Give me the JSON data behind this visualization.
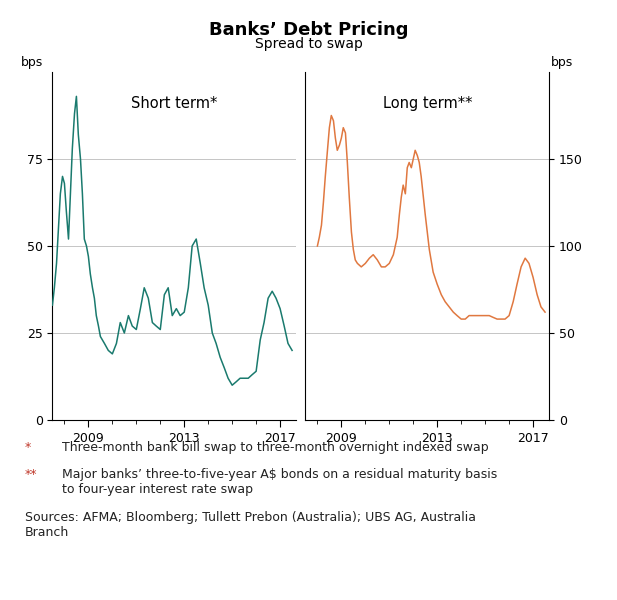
{
  "title": "Banks’ Debt Pricing",
  "subtitle": "Spread to swap",
  "left_label": "Short term*",
  "right_label": "Long term**",
  "bps_label": "bps",
  "left_ylim": [
    0,
    100
  ],
  "left_yticks": [
    0,
    25,
    50,
    75
  ],
  "right_ylim": [
    0,
    200
  ],
  "right_yticks": [
    0,
    50,
    100,
    150
  ],
  "short_color": "#1a7a6e",
  "long_color": "#e07840",
  "footnote_color": "#c0392b",
  "left_xlim": [
    2007.5,
    2017.67
  ],
  "right_xlim": [
    2007.5,
    2017.67
  ],
  "xticks": [
    2009,
    2013,
    2017
  ],
  "short_term_dates": [
    2007.5,
    2007.58,
    2007.67,
    2007.75,
    2007.83,
    2007.92,
    2008.0,
    2008.08,
    2008.17,
    2008.25,
    2008.33,
    2008.42,
    2008.5,
    2008.58,
    2008.67,
    2008.75,
    2008.83,
    2008.92,
    2009.0,
    2009.08,
    2009.17,
    2009.25,
    2009.33,
    2009.42,
    2009.5,
    2009.67,
    2009.83,
    2010.0,
    2010.17,
    2010.33,
    2010.5,
    2010.67,
    2010.83,
    2011.0,
    2011.17,
    2011.33,
    2011.5,
    2011.67,
    2011.83,
    2012.0,
    2012.17,
    2012.33,
    2012.5,
    2012.67,
    2012.83,
    2013.0,
    2013.17,
    2013.33,
    2013.5,
    2013.67,
    2013.83,
    2014.0,
    2014.17,
    2014.33,
    2014.5,
    2014.67,
    2014.83,
    2015.0,
    2015.17,
    2015.33,
    2015.5,
    2015.67,
    2015.83,
    2016.0,
    2016.17,
    2016.33,
    2016.5,
    2016.67,
    2016.83,
    2017.0,
    2017.17,
    2017.33,
    2017.5
  ],
  "short_term_values": [
    33,
    38,
    45,
    55,
    65,
    70,
    68,
    60,
    52,
    65,
    78,
    88,
    93,
    82,
    75,
    65,
    52,
    50,
    47,
    42,
    38,
    35,
    30,
    27,
    24,
    22,
    20,
    19,
    22,
    28,
    25,
    30,
    27,
    26,
    32,
    38,
    35,
    28,
    27,
    26,
    36,
    38,
    30,
    32,
    30,
    31,
    38,
    50,
    52,
    45,
    38,
    33,
    25,
    22,
    18,
    15,
    12,
    10,
    11,
    12,
    12,
    12,
    13,
    14,
    23,
    28,
    35,
    37,
    35,
    32,
    27,
    22,
    20
  ],
  "long_term_dates": [
    2008.0,
    2008.08,
    2008.17,
    2008.25,
    2008.33,
    2008.42,
    2008.5,
    2008.58,
    2008.67,
    2008.75,
    2008.83,
    2008.92,
    2009.0,
    2009.08,
    2009.17,
    2009.25,
    2009.33,
    2009.42,
    2009.5,
    2009.58,
    2009.67,
    2009.83,
    2010.0,
    2010.17,
    2010.33,
    2010.5,
    2010.67,
    2010.83,
    2011.0,
    2011.17,
    2011.33,
    2011.42,
    2011.5,
    2011.58,
    2011.67,
    2011.75,
    2011.83,
    2011.92,
    2012.0,
    2012.08,
    2012.17,
    2012.25,
    2012.33,
    2012.5,
    2012.67,
    2012.83,
    2013.0,
    2013.17,
    2013.33,
    2013.5,
    2013.67,
    2013.83,
    2014.0,
    2014.17,
    2014.33,
    2014.5,
    2014.67,
    2014.83,
    2015.0,
    2015.17,
    2015.33,
    2015.5,
    2015.67,
    2015.83,
    2016.0,
    2016.17,
    2016.33,
    2016.5,
    2016.67,
    2016.83,
    2017.0,
    2017.17,
    2017.33,
    2017.5
  ],
  "long_term_values": [
    100,
    105,
    112,
    125,
    140,
    155,
    168,
    175,
    172,
    162,
    155,
    158,
    162,
    168,
    165,
    148,
    128,
    108,
    98,
    92,
    90,
    88,
    90,
    93,
    95,
    92,
    88,
    88,
    90,
    95,
    105,
    118,
    128,
    135,
    130,
    145,
    148,
    145,
    150,
    155,
    152,
    148,
    140,
    118,
    98,
    85,
    78,
    72,
    68,
    65,
    62,
    60,
    58,
    58,
    60,
    60,
    60,
    60,
    60,
    60,
    59,
    58,
    58,
    58,
    60,
    68,
    78,
    88,
    93,
    90,
    82,
    72,
    65,
    62
  ],
  "footnote1_marker": "*",
  "footnote1_text": "Three-month bank bill swap to three-month overnight indexed swap",
  "footnote2_marker": "**",
  "footnote2_text": "Major banks’ three-to-five-year A$ bonds on a residual maturity basis\nto four-year interest rate swap",
  "sources_text": "Sources: AFMA; Bloomberg; Tullett Prebon (Australia); UBS AG, Australia\nBranch"
}
